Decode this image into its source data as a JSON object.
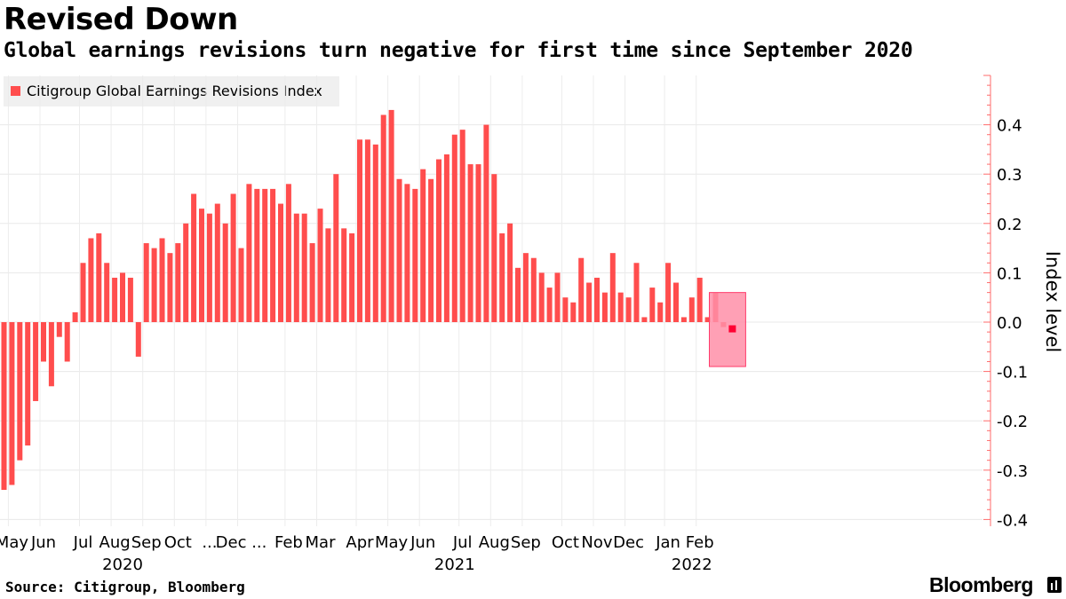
{
  "header": {
    "title": "Revised Down",
    "subtitle": "Global earnings revisions turn negative for first time since September 2020"
  },
  "legend": {
    "label": "Citigroup Global Earnings Revisions Index"
  },
  "footer": {
    "source": "Source: Citigroup, Bloomberg",
    "brand": "Bloomberg"
  },
  "colors": {
    "bar": "#ff4d4d",
    "highlight_fill": "#ff8fa8",
    "highlight_border": "#ff3b6b",
    "marker": "#ff0033",
    "axis": "#ff6b6b"
  },
  "chart_data": {
    "type": "bar",
    "title": "Revised Down",
    "ylabel": "Index level",
    "ylim": [
      -0.4,
      0.5
    ],
    "yticks": [
      0.4,
      0.3,
      0.2,
      0.1,
      0.0,
      -0.1,
      -0.2,
      -0.3,
      -0.4
    ],
    "ytick_labels": [
      "0.4",
      "0.3",
      "0.2",
      "0.1",
      "0.0",
      "-0.1",
      "-0.2",
      "-0.3",
      "-0.4"
    ],
    "grid": true,
    "legend_position": "top-left",
    "series": [
      {
        "name": "Citigroup Global Earnings Revisions Index",
        "values": [
          -0.34,
          -0.33,
          -0.28,
          -0.25,
          -0.16,
          -0.08,
          -0.13,
          -0.03,
          -0.08,
          0.02,
          0.12,
          0.17,
          0.18,
          0.12,
          0.09,
          0.1,
          0.09,
          -0.07,
          0.16,
          0.15,
          0.17,
          0.14,
          0.16,
          0.2,
          0.26,
          0.23,
          0.22,
          0.24,
          0.2,
          0.26,
          0.15,
          0.28,
          0.27,
          0.27,
          0.27,
          0.24,
          0.28,
          0.22,
          0.22,
          0.16,
          0.23,
          0.19,
          0.3,
          0.19,
          0.18,
          0.37,
          0.37,
          0.36,
          0.42,
          0.43,
          0.29,
          0.28,
          0.27,
          0.31,
          0.29,
          0.33,
          0.34,
          0.38,
          0.39,
          0.32,
          0.32,
          0.4,
          0.3,
          0.18,
          0.2,
          0.11,
          0.14,
          0.13,
          0.1,
          0.07,
          0.1,
          0.05,
          0.04,
          0.13,
          0.08,
          0.09,
          0.06,
          0.14,
          0.06,
          0.05,
          0.12,
          0.01,
          0.07,
          0.04,
          0.12,
          0.08,
          0.01,
          0.05,
          0.09,
          0.01,
          0.06,
          -0.01
        ]
      }
    ],
    "x_month_labels": [
      {
        "label": "May",
        "index": 1
      },
      {
        "label": "Jun",
        "index": 5
      },
      {
        "label": "Jul",
        "index": 10
      },
      {
        "label": "Aug",
        "index": 14
      },
      {
        "label": "Sep",
        "index": 18
      },
      {
        "label": "Oct",
        "index": 22
      },
      {
        "label": "...",
        "index": 26
      },
      {
        "label": "Dec ...",
        "index": 30
      },
      {
        "label": "Feb",
        "index": 36
      },
      {
        "label": "Mar",
        "index": 40
      },
      {
        "label": "Apr",
        "index": 45
      },
      {
        "label": "May",
        "index": 49
      },
      {
        "label": "Jun",
        "index": 53
      },
      {
        "label": "Jul",
        "index": 58
      },
      {
        "label": "Aug",
        "index": 62
      },
      {
        "label": "Sep",
        "index": 66
      },
      {
        "label": "Oct",
        "index": 71
      },
      {
        "label": "Nov",
        "index": 75
      },
      {
        "label": "Dec",
        "index": 79
      },
      {
        "label": "Jan",
        "index": 84
      },
      {
        "label": "Feb",
        "index": 88
      }
    ],
    "x_year_labels": [
      {
        "label": "2020",
        "index": 15
      },
      {
        "label": "2021",
        "index": 57
      },
      {
        "label": "2022",
        "index": 87
      }
    ],
    "highlight": {
      "from_index": 90,
      "to_index": 91,
      "ymin": -0.09,
      "ymax": 0.06
    }
  }
}
